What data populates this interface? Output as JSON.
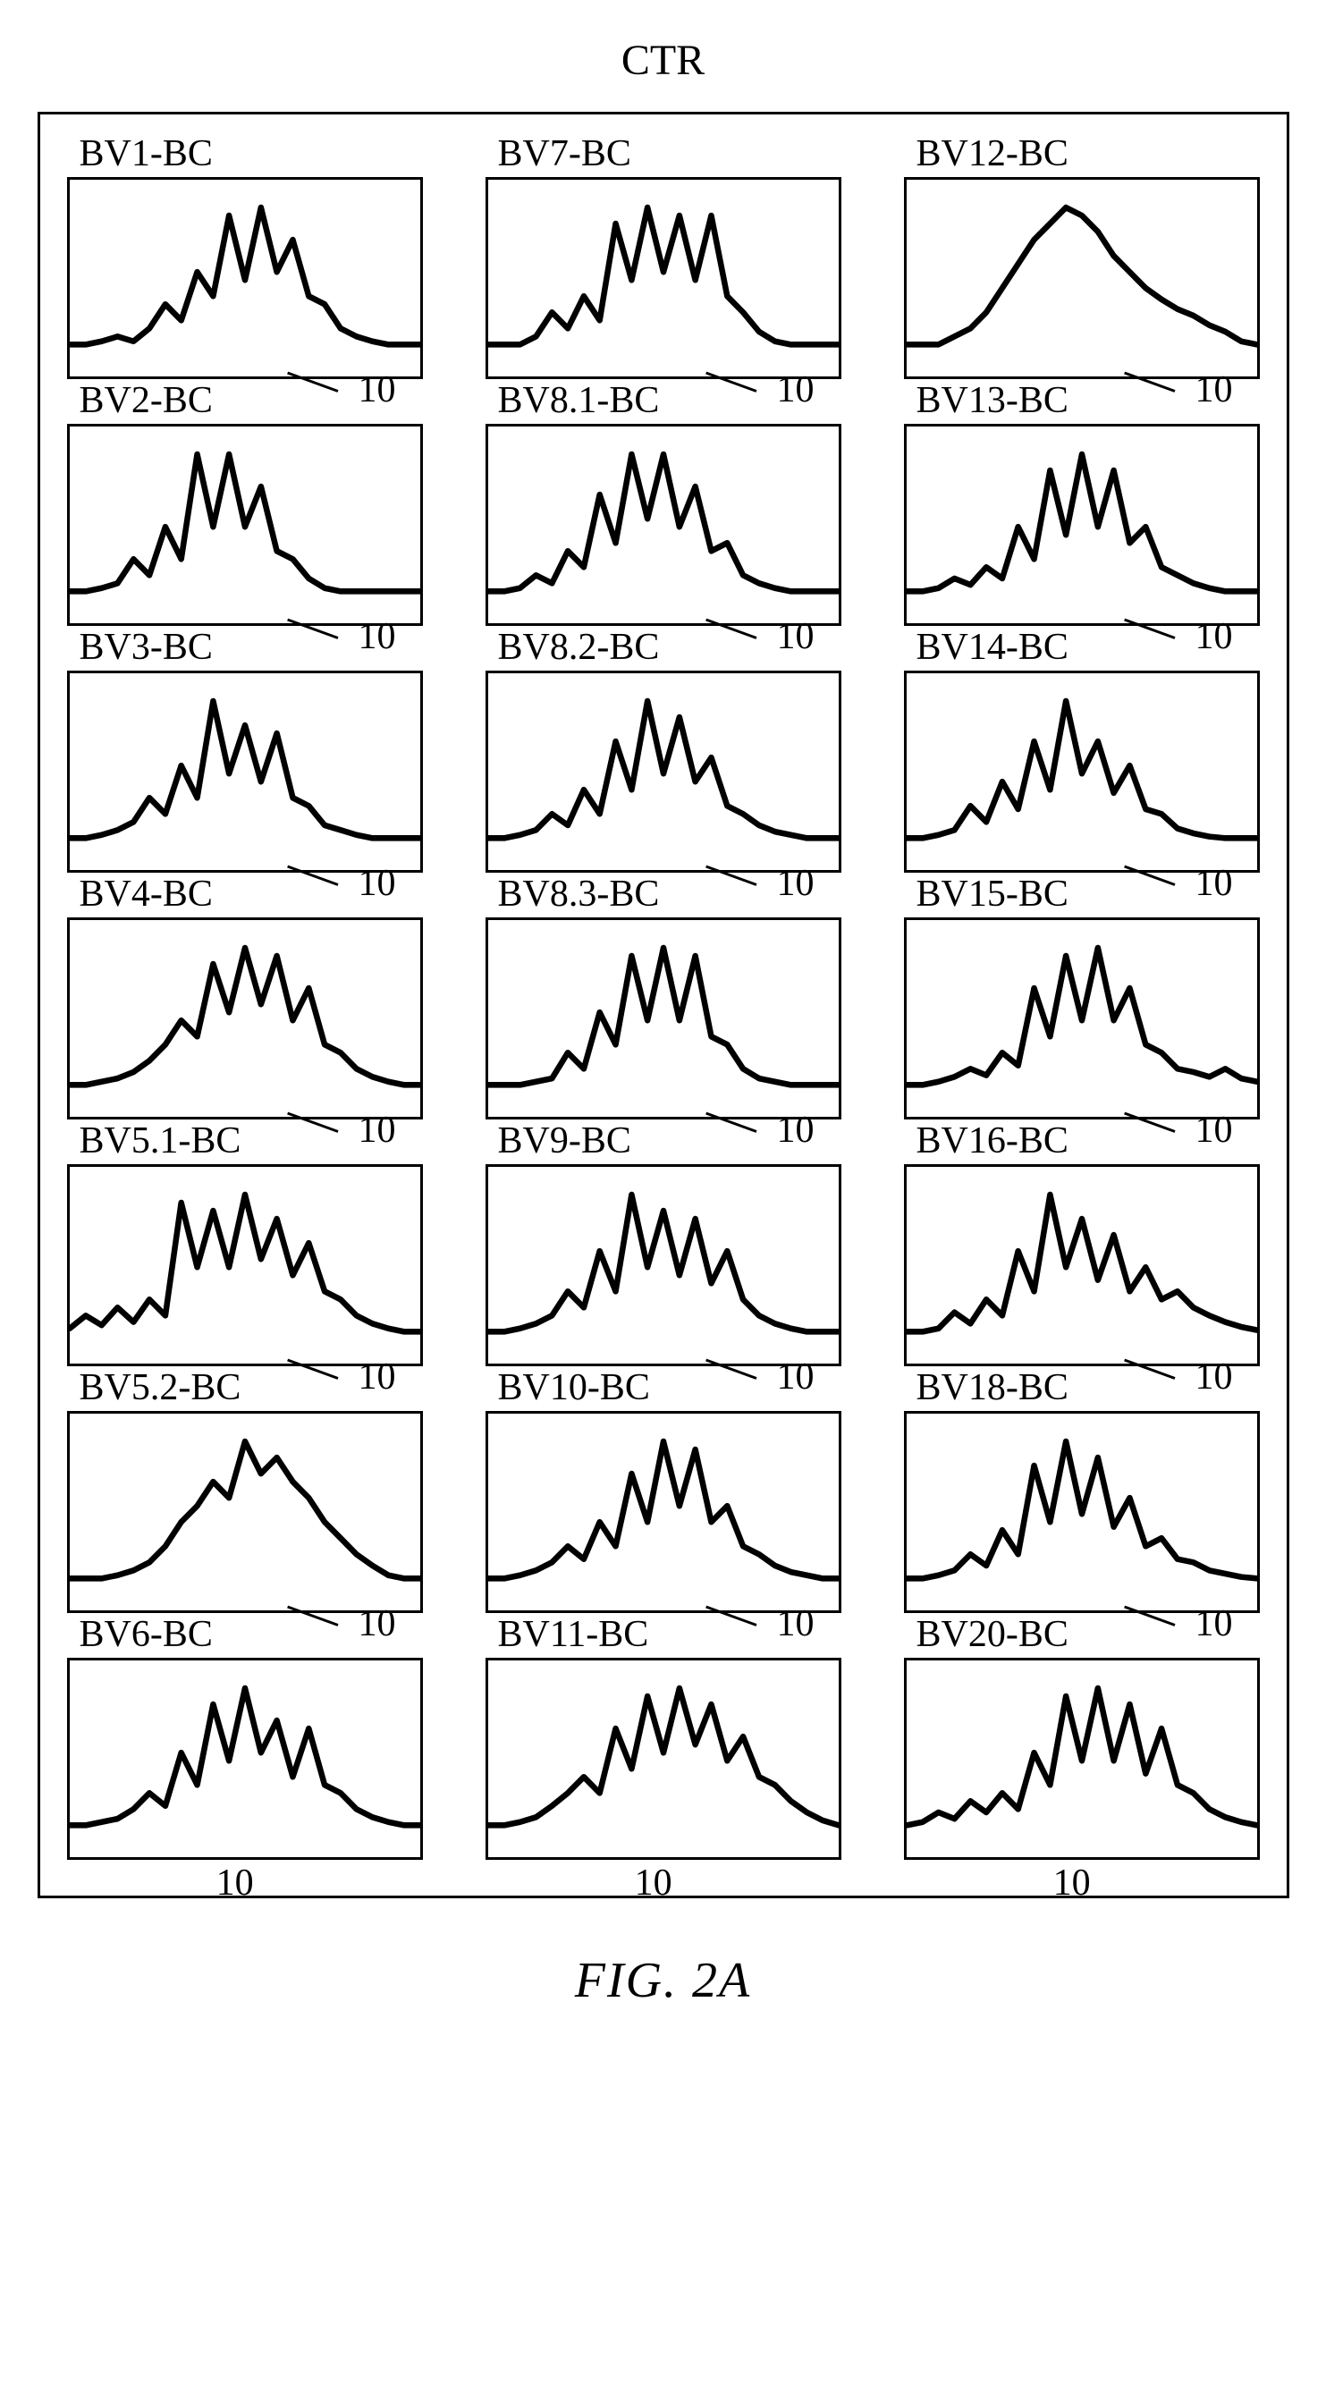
{
  "title": "CTR",
  "figure_caption": "FIG. 2A",
  "axis_label": "10",
  "columns": 3,
  "rows": 7,
  "stroke_color": "#000000",
  "stroke_width": 3,
  "background": "#ffffff",
  "panel_border_width": 3,
  "panels": [
    {
      "label": "BV1-BC",
      "ref": "10",
      "data": [
        0.1,
        0.1,
        0.12,
        0.15,
        0.12,
        0.2,
        0.35,
        0.25,
        0.55,
        0.4,
        0.9,
        0.5,
        0.95,
        0.55,
        0.75,
        0.4,
        0.35,
        0.2,
        0.15,
        0.12,
        0.1,
        0.1,
        0.1
      ]
    },
    {
      "label": "BV7-BC",
      "ref": "10",
      "data": [
        0.1,
        0.1,
        0.1,
        0.15,
        0.3,
        0.2,
        0.4,
        0.25,
        0.85,
        0.5,
        0.95,
        0.55,
        0.9,
        0.5,
        0.9,
        0.4,
        0.3,
        0.18,
        0.12,
        0.1,
        0.1,
        0.1,
        0.1
      ]
    },
    {
      "label": "BV12-BC",
      "ref": "10",
      "data": [
        0.1,
        0.1,
        0.1,
        0.15,
        0.2,
        0.3,
        0.45,
        0.6,
        0.75,
        0.85,
        0.95,
        0.9,
        0.8,
        0.65,
        0.55,
        0.45,
        0.38,
        0.32,
        0.28,
        0.22,
        0.18,
        0.12,
        0.1
      ]
    },
    {
      "label": "BV2-BC",
      "ref": "10",
      "data": [
        0.1,
        0.1,
        0.12,
        0.15,
        0.3,
        0.2,
        0.5,
        0.3,
        0.95,
        0.5,
        0.95,
        0.5,
        0.75,
        0.35,
        0.3,
        0.18,
        0.12,
        0.1,
        0.1,
        0.1,
        0.1,
        0.1,
        0.1
      ]
    },
    {
      "label": "BV8.1-BC",
      "ref": "10",
      "data": [
        0.1,
        0.1,
        0.12,
        0.2,
        0.15,
        0.35,
        0.25,
        0.7,
        0.4,
        0.95,
        0.55,
        0.95,
        0.5,
        0.75,
        0.35,
        0.4,
        0.2,
        0.15,
        0.12,
        0.1,
        0.1,
        0.1,
        0.1
      ]
    },
    {
      "label": "BV13-BC",
      "ref": "10",
      "data": [
        0.1,
        0.1,
        0.12,
        0.18,
        0.14,
        0.25,
        0.18,
        0.5,
        0.3,
        0.85,
        0.45,
        0.95,
        0.5,
        0.85,
        0.4,
        0.5,
        0.25,
        0.2,
        0.15,
        0.12,
        0.1,
        0.1,
        0.1
      ]
    },
    {
      "label": "BV3-BC",
      "ref": "10",
      "data": [
        0.1,
        0.1,
        0.12,
        0.15,
        0.2,
        0.35,
        0.25,
        0.55,
        0.35,
        0.95,
        0.5,
        0.8,
        0.45,
        0.75,
        0.35,
        0.3,
        0.18,
        0.15,
        0.12,
        0.1,
        0.1,
        0.1,
        0.1
      ]
    },
    {
      "label": "BV8.2-BC",
      "ref": "10",
      "data": [
        0.1,
        0.1,
        0.12,
        0.15,
        0.25,
        0.18,
        0.4,
        0.25,
        0.7,
        0.4,
        0.95,
        0.5,
        0.85,
        0.45,
        0.6,
        0.3,
        0.25,
        0.18,
        0.14,
        0.12,
        0.1,
        0.1,
        0.1
      ]
    },
    {
      "label": "BV14-BC",
      "ref": "10",
      "data": [
        0.1,
        0.1,
        0.12,
        0.15,
        0.3,
        0.2,
        0.45,
        0.28,
        0.7,
        0.4,
        0.95,
        0.5,
        0.7,
        0.38,
        0.55,
        0.28,
        0.25,
        0.16,
        0.13,
        0.11,
        0.1,
        0.1,
        0.1
      ]
    },
    {
      "label": "BV4-BC",
      "ref": "10",
      "data": [
        0.1,
        0.1,
        0.12,
        0.14,
        0.18,
        0.25,
        0.35,
        0.5,
        0.4,
        0.85,
        0.55,
        0.95,
        0.6,
        0.9,
        0.5,
        0.7,
        0.35,
        0.3,
        0.2,
        0.15,
        0.12,
        0.1,
        0.1
      ]
    },
    {
      "label": "BV8.3-BC",
      "ref": "10",
      "data": [
        0.1,
        0.1,
        0.1,
        0.12,
        0.14,
        0.3,
        0.2,
        0.55,
        0.35,
        0.9,
        0.5,
        0.95,
        0.5,
        0.9,
        0.4,
        0.35,
        0.2,
        0.14,
        0.12,
        0.1,
        0.1,
        0.1,
        0.1
      ]
    },
    {
      "label": "BV15-BC",
      "ref": "10",
      "data": [
        0.1,
        0.1,
        0.12,
        0.15,
        0.2,
        0.16,
        0.3,
        0.22,
        0.7,
        0.4,
        0.9,
        0.5,
        0.95,
        0.5,
        0.7,
        0.35,
        0.3,
        0.2,
        0.18,
        0.15,
        0.2,
        0.14,
        0.12
      ]
    },
    {
      "label": "BV5.1-BC",
      "ref": "10",
      "data": [
        0.12,
        0.2,
        0.14,
        0.25,
        0.16,
        0.3,
        0.2,
        0.9,
        0.5,
        0.85,
        0.5,
        0.95,
        0.55,
        0.8,
        0.45,
        0.65,
        0.35,
        0.3,
        0.2,
        0.15,
        0.12,
        0.1,
        0.1
      ]
    },
    {
      "label": "BV9-BC",
      "ref": "10",
      "data": [
        0.1,
        0.1,
        0.12,
        0.15,
        0.2,
        0.35,
        0.25,
        0.6,
        0.35,
        0.95,
        0.5,
        0.85,
        0.45,
        0.8,
        0.4,
        0.6,
        0.3,
        0.2,
        0.15,
        0.12,
        0.1,
        0.1,
        0.1
      ]
    },
    {
      "label": "BV16-BC",
      "ref": "10",
      "data": [
        0.1,
        0.1,
        0.12,
        0.22,
        0.15,
        0.3,
        0.2,
        0.6,
        0.35,
        0.95,
        0.5,
        0.8,
        0.42,
        0.7,
        0.35,
        0.5,
        0.3,
        0.35,
        0.25,
        0.2,
        0.16,
        0.13,
        0.11
      ]
    },
    {
      "label": "BV5.2-BC",
      "ref": "10",
      "data": [
        0.1,
        0.1,
        0.1,
        0.12,
        0.15,
        0.2,
        0.3,
        0.45,
        0.55,
        0.7,
        0.6,
        0.95,
        0.75,
        0.85,
        0.7,
        0.6,
        0.45,
        0.35,
        0.25,
        0.18,
        0.12,
        0.1,
        0.1
      ]
    },
    {
      "label": "BV10-BC",
      "ref": "10",
      "data": [
        0.1,
        0.1,
        0.12,
        0.15,
        0.2,
        0.3,
        0.22,
        0.45,
        0.3,
        0.75,
        0.45,
        0.95,
        0.55,
        0.9,
        0.45,
        0.55,
        0.3,
        0.25,
        0.18,
        0.14,
        0.12,
        0.1,
        0.1
      ]
    },
    {
      "label": "BV18-BC",
      "ref": "10",
      "data": [
        0.1,
        0.1,
        0.12,
        0.15,
        0.25,
        0.18,
        0.4,
        0.25,
        0.8,
        0.45,
        0.95,
        0.5,
        0.85,
        0.42,
        0.6,
        0.3,
        0.35,
        0.22,
        0.2,
        0.15,
        0.13,
        0.11,
        0.1
      ]
    },
    {
      "label": "BV6-BC",
      "ref": "10",
      "data": [
        0.1,
        0.1,
        0.12,
        0.14,
        0.2,
        0.3,
        0.22,
        0.55,
        0.35,
        0.85,
        0.5,
        0.95,
        0.55,
        0.75,
        0.4,
        0.7,
        0.35,
        0.3,
        0.2,
        0.15,
        0.12,
        0.1,
        0.1
      ]
    },
    {
      "label": "BV11-BC",
      "ref": "10",
      "data": [
        0.1,
        0.1,
        0.12,
        0.15,
        0.22,
        0.3,
        0.4,
        0.3,
        0.7,
        0.45,
        0.9,
        0.55,
        0.95,
        0.6,
        0.85,
        0.5,
        0.65,
        0.4,
        0.35,
        0.25,
        0.18,
        0.13,
        0.1
      ]
    },
    {
      "label": "BV20-BC",
      "ref": "10",
      "data": [
        0.1,
        0.12,
        0.18,
        0.14,
        0.25,
        0.18,
        0.3,
        0.2,
        0.55,
        0.35,
        0.9,
        0.5,
        0.95,
        0.5,
        0.85,
        0.42,
        0.7,
        0.35,
        0.3,
        0.2,
        0.15,
        0.12,
        0.1
      ]
    }
  ]
}
